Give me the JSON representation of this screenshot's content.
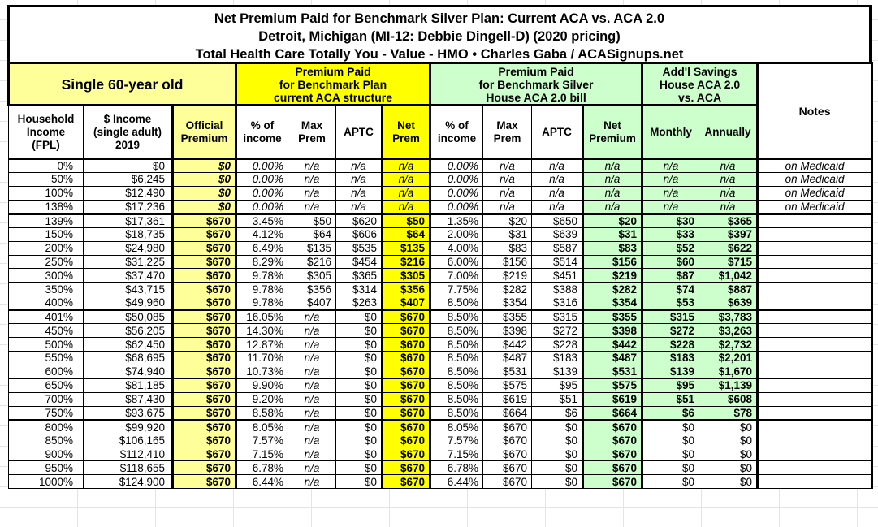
{
  "title": {
    "line1": "Net Premium Paid for Benchmark Silver Plan: Current ACA vs. ACA 2.0",
    "line2": "Detroit, Michigan (MI-12: Debbie Dingell-D) (2020 pricing)",
    "line3": "Total Health Care Totally You - Value - HMO • Charles Gaba / ACASignups.net"
  },
  "colors": {
    "light_yellow": "#FFFF99",
    "bright_yellow": "#FFFF00",
    "light_green": "#CCFFCC",
    "border": "#000000"
  },
  "header": {
    "groups": {
      "demographic": "Single 60-year old",
      "current_aca": "Premium Paid\nfor Benchmark Plan\ncurrent ACA structure",
      "aca20": "Premium Paid\nfor Benchmark Silver\nHouse ACA 2.0 bill",
      "savings": "Add'l Savings\nHouse ACA 2.0\nvs. ACA",
      "notes": "Notes"
    },
    "columns": [
      "Household\nIncome\n(FPL)",
      "$ Income\n(single adult)\n2019",
      "Official\nPremium",
      "% of\nincome",
      "Max\nPrem",
      "APTC",
      "Net\nPrem",
      "% of\nincome",
      "Max\nPrem",
      "APTC",
      "Net\nPremium",
      "Monthly",
      "Annually"
    ]
  },
  "rows": [
    {
      "fpl": "0%",
      "income": "$0",
      "official": "$0",
      "a_pct": "0.00%",
      "a_max": "n/a",
      "a_aptc": "n/a",
      "a_net": "n/a",
      "h_pct": "0.00%",
      "h_max": "n/a",
      "h_aptc": "n/a",
      "h_net": "n/a",
      "monthly": "n/a",
      "annually": "n/a",
      "notes": "on Medicaid",
      "medicaid": true
    },
    {
      "fpl": "50%",
      "income": "$6,245",
      "official": "$0",
      "a_pct": "0.00%",
      "a_max": "n/a",
      "a_aptc": "n/a",
      "a_net": "n/a",
      "h_pct": "0.00%",
      "h_max": "n/a",
      "h_aptc": "n/a",
      "h_net": "n/a",
      "monthly": "n/a",
      "annually": "n/a",
      "notes": "on Medicaid",
      "medicaid": true
    },
    {
      "fpl": "100%",
      "income": "$12,490",
      "official": "$0",
      "a_pct": "0.00%",
      "a_max": "n/a",
      "a_aptc": "n/a",
      "a_net": "n/a",
      "h_pct": "0.00%",
      "h_max": "n/a",
      "h_aptc": "n/a",
      "h_net": "n/a",
      "monthly": "n/a",
      "annually": "n/a",
      "notes": "on Medicaid",
      "medicaid": true
    },
    {
      "fpl": "138%",
      "income": "$17,236",
      "official": "$0",
      "a_pct": "0.00%",
      "a_max": "n/a",
      "a_aptc": "n/a",
      "a_net": "n/a",
      "h_pct": "0.00%",
      "h_max": "n/a",
      "h_aptc": "n/a",
      "h_net": "n/a",
      "monthly": "n/a",
      "annually": "n/a",
      "notes": "on Medicaid",
      "medicaid": true,
      "group_end": true
    },
    {
      "fpl": "139%",
      "income": "$17,361",
      "official": "$670",
      "a_pct": "3.45%",
      "a_max": "$50",
      "a_aptc": "$620",
      "a_net": "$50",
      "h_pct": "1.35%",
      "h_max": "$20",
      "h_aptc": "$650",
      "h_net": "$20",
      "monthly": "$30",
      "annually": "$365",
      "notes": ""
    },
    {
      "fpl": "150%",
      "income": "$18,735",
      "official": "$670",
      "a_pct": "4.12%",
      "a_max": "$64",
      "a_aptc": "$606",
      "a_net": "$64",
      "h_pct": "2.00%",
      "h_max": "$31",
      "h_aptc": "$639",
      "h_net": "$31",
      "monthly": "$33",
      "annually": "$397",
      "notes": ""
    },
    {
      "fpl": "200%",
      "income": "$24,980",
      "official": "$670",
      "a_pct": "6.49%",
      "a_max": "$135",
      "a_aptc": "$535",
      "a_net": "$135",
      "h_pct": "4.00%",
      "h_max": "$83",
      "h_aptc": "$587",
      "h_net": "$83",
      "monthly": "$52",
      "annually": "$622",
      "notes": ""
    },
    {
      "fpl": "250%",
      "income": "$31,225",
      "official": "$670",
      "a_pct": "8.29%",
      "a_max": "$216",
      "a_aptc": "$454",
      "a_net": "$216",
      "h_pct": "6.00%",
      "h_max": "$156",
      "h_aptc": "$514",
      "h_net": "$156",
      "monthly": "$60",
      "annually": "$715",
      "notes": ""
    },
    {
      "fpl": "300%",
      "income": "$37,470",
      "official": "$670",
      "a_pct": "9.78%",
      "a_max": "$305",
      "a_aptc": "$365",
      "a_net": "$305",
      "h_pct": "7.00%",
      "h_max": "$219",
      "h_aptc": "$451",
      "h_net": "$219",
      "monthly": "$87",
      "annually": "$1,042",
      "notes": ""
    },
    {
      "fpl": "350%",
      "income": "$43,715",
      "official": "$670",
      "a_pct": "9.78%",
      "a_max": "$356",
      "a_aptc": "$314",
      "a_net": "$356",
      "h_pct": "7.75%",
      "h_max": "$282",
      "h_aptc": "$388",
      "h_net": "$282",
      "monthly": "$74",
      "annually": "$887",
      "notes": ""
    },
    {
      "fpl": "400%",
      "income": "$49,960",
      "official": "$670",
      "a_pct": "9.78%",
      "a_max": "$407",
      "a_aptc": "$263",
      "a_net": "$407",
      "h_pct": "8.50%",
      "h_max": "$354",
      "h_aptc": "$316",
      "h_net": "$354",
      "monthly": "$53",
      "annually": "$639",
      "notes": "",
      "group_end": true
    },
    {
      "fpl": "401%",
      "income": "$50,085",
      "official": "$670",
      "a_pct": "16.05%",
      "a_max": "n/a",
      "a_aptc": "$0",
      "a_net": "$670",
      "h_pct": "8.50%",
      "h_max": "$355",
      "h_aptc": "$315",
      "h_net": "$355",
      "monthly": "$315",
      "annually": "$3,783",
      "notes": ""
    },
    {
      "fpl": "450%",
      "income": "$56,205",
      "official": "$670",
      "a_pct": "14.30%",
      "a_max": "n/a",
      "a_aptc": "$0",
      "a_net": "$670",
      "h_pct": "8.50%",
      "h_max": "$398",
      "h_aptc": "$272",
      "h_net": "$398",
      "monthly": "$272",
      "annually": "$3,263",
      "notes": ""
    },
    {
      "fpl": "500%",
      "income": "$62,450",
      "official": "$670",
      "a_pct": "12.87%",
      "a_max": "n/a",
      "a_aptc": "$0",
      "a_net": "$670",
      "h_pct": "8.50%",
      "h_max": "$442",
      "h_aptc": "$228",
      "h_net": "$442",
      "monthly": "$228",
      "annually": "$2,732",
      "notes": ""
    },
    {
      "fpl": "550%",
      "income": "$68,695",
      "official": "$670",
      "a_pct": "11.70%",
      "a_max": "n/a",
      "a_aptc": "$0",
      "a_net": "$670",
      "h_pct": "8.50%",
      "h_max": "$487",
      "h_aptc": "$183",
      "h_net": "$487",
      "monthly": "$183",
      "annually": "$2,201",
      "notes": ""
    },
    {
      "fpl": "600%",
      "income": "$74,940",
      "official": "$670",
      "a_pct": "10.73%",
      "a_max": "n/a",
      "a_aptc": "$0",
      "a_net": "$670",
      "h_pct": "8.50%",
      "h_max": "$531",
      "h_aptc": "$139",
      "h_net": "$531",
      "monthly": "$139",
      "annually": "$1,670",
      "notes": ""
    },
    {
      "fpl": "650%",
      "income": "$81,185",
      "official": "$670",
      "a_pct": "9.90%",
      "a_max": "n/a",
      "a_aptc": "$0",
      "a_net": "$670",
      "h_pct": "8.50%",
      "h_max": "$575",
      "h_aptc": "$95",
      "h_net": "$575",
      "monthly": "$95",
      "annually": "$1,139",
      "notes": ""
    },
    {
      "fpl": "700%",
      "income": "$87,430",
      "official": "$670",
      "a_pct": "9.20%",
      "a_max": "n/a",
      "a_aptc": "$0",
      "a_net": "$670",
      "h_pct": "8.50%",
      "h_max": "$619",
      "h_aptc": "$51",
      "h_net": "$619",
      "monthly": "$51",
      "annually": "$608",
      "notes": ""
    },
    {
      "fpl": "750%",
      "income": "$93,675",
      "official": "$670",
      "a_pct": "8.58%",
      "a_max": "n/a",
      "a_aptc": "$0",
      "a_net": "$670",
      "h_pct": "8.50%",
      "h_max": "$664",
      "h_aptc": "$6",
      "h_net": "$664",
      "monthly": "$6",
      "annually": "$78",
      "notes": "",
      "group_end": true
    },
    {
      "fpl": "800%",
      "income": "$99,920",
      "official": "$670",
      "a_pct": "8.05%",
      "a_max": "n/a",
      "a_aptc": "$0",
      "a_net": "$670",
      "h_pct": "8.05%",
      "h_max": "$670",
      "h_aptc": "$0",
      "h_net": "$670",
      "monthly": "$0",
      "annually": "$0",
      "notes": "",
      "savings_plain": true
    },
    {
      "fpl": "850%",
      "income": "$106,165",
      "official": "$670",
      "a_pct": "7.57%",
      "a_max": "n/a",
      "a_aptc": "$0",
      "a_net": "$670",
      "h_pct": "7.57%",
      "h_max": "$670",
      "h_aptc": "$0",
      "h_net": "$670",
      "monthly": "$0",
      "annually": "$0",
      "notes": "",
      "savings_plain": true
    },
    {
      "fpl": "900%",
      "income": "$112,410",
      "official": "$670",
      "a_pct": "7.15%",
      "a_max": "n/a",
      "a_aptc": "$0",
      "a_net": "$670",
      "h_pct": "7.15%",
      "h_max": "$670",
      "h_aptc": "$0",
      "h_net": "$670",
      "monthly": "$0",
      "annually": "$0",
      "notes": "",
      "savings_plain": true
    },
    {
      "fpl": "950%",
      "income": "$118,655",
      "official": "$670",
      "a_pct": "6.78%",
      "a_max": "n/a",
      "a_aptc": "$0",
      "a_net": "$670",
      "h_pct": "6.78%",
      "h_max": "$670",
      "h_aptc": "$0",
      "h_net": "$670",
      "monthly": "$0",
      "annually": "$0",
      "notes": "",
      "savings_plain": true
    },
    {
      "fpl": "1000%",
      "income": "$124,900",
      "official": "$670",
      "a_pct": "6.44%",
      "a_max": "n/a",
      "a_aptc": "$0",
      "a_net": "$670",
      "h_pct": "6.44%",
      "h_max": "$670",
      "h_aptc": "$0",
      "h_net": "$670",
      "monthly": "$0",
      "annually": "$0",
      "notes": "",
      "savings_plain": true
    }
  ]
}
